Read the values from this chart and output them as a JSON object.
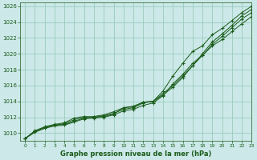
{
  "title": "Graphe pression niveau de la mer (hPa)",
  "bg_color": "#cce8e8",
  "grid_color": "#99ccbb",
  "line_color": "#1a5c1a",
  "xlim": [
    -0.5,
    23
  ],
  "ylim": [
    1009.0,
    1026.5
  ],
  "yticks": [
    1010,
    1012,
    1014,
    1016,
    1018,
    1020,
    1022,
    1024,
    1026
  ],
  "xticks": [
    0,
    1,
    2,
    3,
    4,
    5,
    6,
    7,
    8,
    9,
    10,
    11,
    12,
    13,
    14,
    15,
    16,
    17,
    18,
    19,
    20,
    21,
    22,
    23
  ],
  "series": [
    [
      1009.3,
      1010.2,
      1010.7,
      1011.0,
      1011.1,
      1011.5,
      1011.9,
      1012.0,
      1012.1,
      1012.4,
      1013.2,
      1013.4,
      1013.9,
      1014.0,
      1015.0,
      1016.0,
      1017.2,
      1018.5,
      1019.8,
      1021.2,
      1022.2,
      1023.3,
      1024.4,
      1025.2
    ],
    [
      1009.3,
      1010.2,
      1010.7,
      1011.0,
      1011.2,
      1011.7,
      1012.0,
      1012.1,
      1012.3,
      1012.7,
      1013.2,
      1013.3,
      1013.9,
      1014.0,
      1014.8,
      1015.8,
      1017.0,
      1018.5,
      1020.0,
      1021.5,
      1022.5,
      1023.6,
      1024.8,
      1025.6
    ],
    [
      1009.3,
      1010.3,
      1010.8,
      1011.1,
      1011.3,
      1011.9,
      1012.1,
      1012.0,
      1012.2,
      1012.5,
      1013.0,
      1013.2,
      1013.8,
      1014.0,
      1015.3,
      1017.2,
      1018.8,
      1020.3,
      1021.0,
      1022.4,
      1023.2,
      1024.2,
      1025.2,
      1026.0
    ],
    [
      1009.3,
      1010.1,
      1010.6,
      1010.9,
      1011.0,
      1011.4,
      1011.8,
      1011.9,
      1012.0,
      1012.3,
      1012.8,
      1013.0,
      1013.5,
      1013.8,
      1014.7,
      1016.2,
      1017.4,
      1018.8,
      1019.8,
      1021.0,
      1021.8,
      1022.8,
      1023.8,
      1024.7
    ]
  ]
}
